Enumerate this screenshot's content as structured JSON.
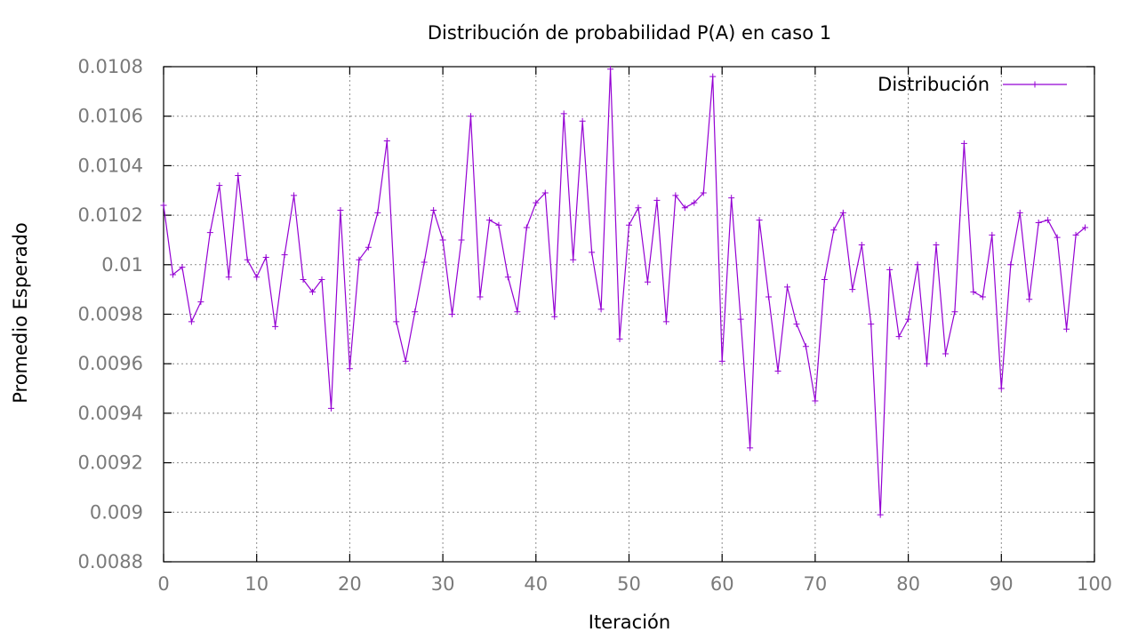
{
  "chart_data": {
    "type": "line",
    "title": "Distribución de probabilidad P(A) en caso 1",
    "xlabel": "Iteración",
    "ylabel": "Promedio Esperado",
    "xlim": [
      0,
      100
    ],
    "ylim": [
      0.0088,
      0.0108
    ],
    "x_ticks": [
      "0",
      "10",
      "20",
      "30",
      "40",
      "50",
      "60",
      "70",
      "80",
      "90",
      "100"
    ],
    "x_tick_values": [
      0,
      10,
      20,
      30,
      40,
      50,
      60,
      70,
      80,
      90,
      100
    ],
    "y_ticks": [
      "0.0088",
      "0.009",
      "0.0092",
      "0.0094",
      "0.0096",
      "0.0098",
      "0.01",
      "0.0102",
      "0.0104",
      "0.0106",
      "0.0108"
    ],
    "y_tick_values": [
      0.0088,
      0.009,
      0.0092,
      0.0094,
      0.0096,
      0.0098,
      0.01,
      0.0102,
      0.0104,
      0.0106,
      0.0108
    ],
    "grid": true,
    "legend_position": "top-right",
    "series": [
      {
        "name": "Distribución",
        "color": "#9400d3",
        "marker": "+",
        "x": [
          0,
          1,
          2,
          3,
          4,
          5,
          6,
          7,
          8,
          9,
          10,
          11,
          12,
          13,
          14,
          15,
          16,
          17,
          18,
          19,
          20,
          21,
          22,
          23,
          24,
          25,
          26,
          27,
          28,
          29,
          30,
          31,
          32,
          33,
          34,
          35,
          36,
          37,
          38,
          39,
          40,
          41,
          42,
          43,
          44,
          45,
          46,
          47,
          48,
          49,
          50,
          51,
          52,
          53,
          54,
          55,
          56,
          57,
          58,
          59,
          60,
          61,
          62,
          63,
          64,
          65,
          66,
          67,
          68,
          69,
          70,
          71,
          72,
          73,
          74,
          75,
          76,
          77,
          78,
          79,
          80,
          81,
          82,
          83,
          84,
          85,
          86,
          87,
          88,
          89,
          90,
          91,
          92,
          93,
          94,
          95,
          96,
          97,
          98,
          99
        ],
        "values": [
          0.01024,
          0.00996,
          0.00999,
          0.00977,
          0.00985,
          0.01013,
          0.01032,
          0.00995,
          0.01036,
          0.01002,
          0.00995,
          0.01003,
          0.00975,
          0.01004,
          0.01028,
          0.00994,
          0.00989,
          0.00994,
          0.00942,
          0.01022,
          0.00958,
          0.01002,
          0.01007,
          0.01021,
          0.0105,
          0.00977,
          0.00961,
          0.00981,
          0.01001,
          0.01022,
          0.0101,
          0.0098,
          0.0101,
          0.0106,
          0.00987,
          0.01018,
          0.01016,
          0.00995,
          0.00981,
          0.01015,
          0.01025,
          0.01029,
          0.00979,
          0.01061,
          0.01002,
          0.01058,
          0.01005,
          0.00982,
          0.01079,
          0.0097,
          0.01016,
          0.01023,
          0.00993,
          0.01026,
          0.00977,
          0.01028,
          0.01023,
          0.01025,
          0.01029,
          0.01076,
          0.00961,
          0.01027,
          0.00978,
          0.00926,
          0.01018,
          0.00987,
          0.00957,
          0.00991,
          0.00976,
          0.00967,
          0.00945,
          0.00994,
          0.01014,
          0.01021,
          0.0099,
          0.01008,
          0.00976,
          0.00899,
          0.00998,
          0.00971,
          0.00978,
          0.01,
          0.0096,
          0.01008,
          0.00964,
          0.00981,
          0.01049,
          0.00989,
          0.00987,
          0.01012,
          0.0095,
          0.01,
          0.01021,
          0.00986,
          0.01017,
          0.01018,
          0.01011,
          0.00974,
          0.01012,
          0.01015
        ]
      }
    ]
  }
}
